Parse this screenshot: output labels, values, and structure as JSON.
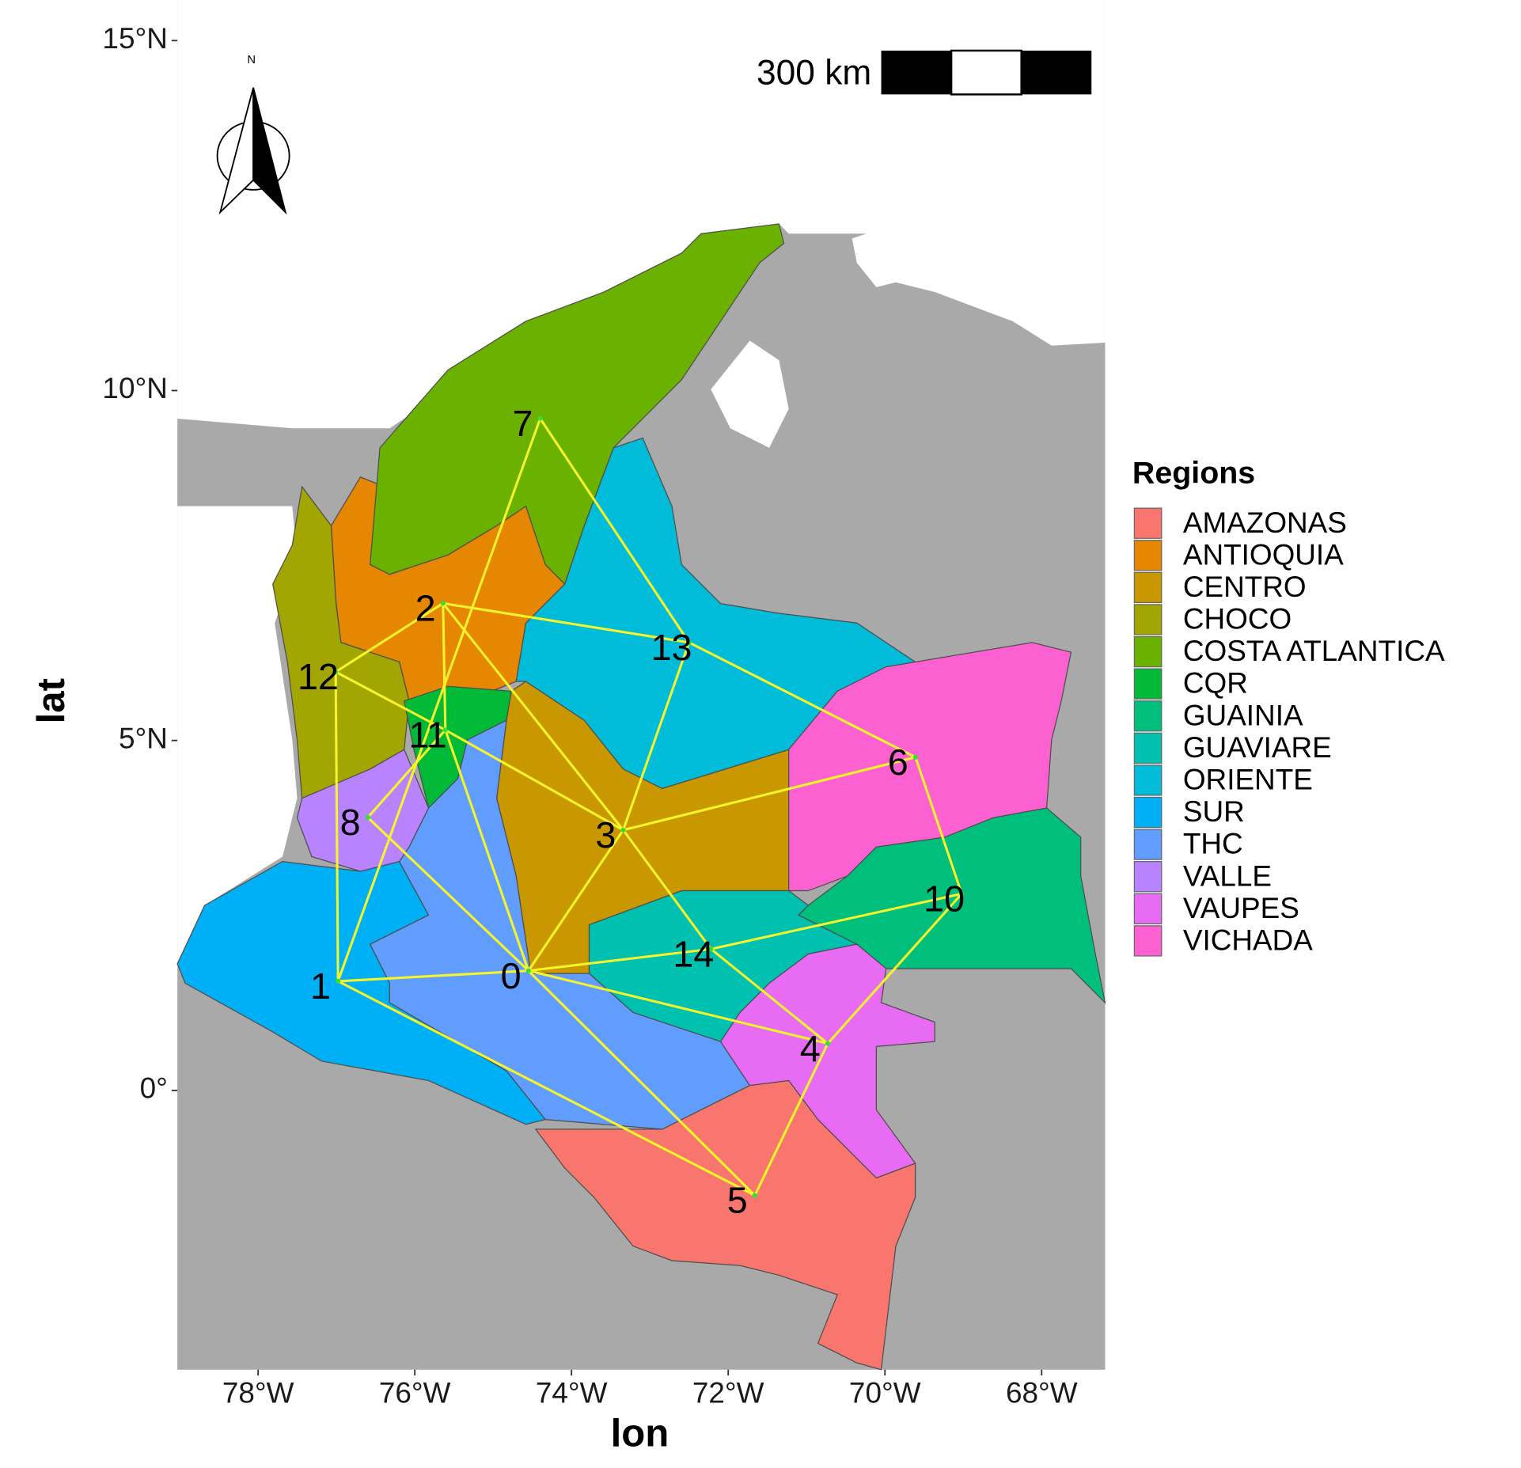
{
  "chart_data": {
    "type": "map",
    "xlabel": "lon",
    "ylabel": "lat",
    "xlim": [
      -79.03,
      -67.19
    ],
    "ylim": [
      -3.99,
      15.58
    ],
    "xticks": [
      {
        "value": -78,
        "label": "78°W"
      },
      {
        "value": -76,
        "label": "76°W"
      },
      {
        "value": -74,
        "label": "74°W"
      },
      {
        "value": -72,
        "label": "72°W"
      },
      {
        "value": -70,
        "label": "70°W"
      },
      {
        "value": -68,
        "label": "68°W"
      }
    ],
    "yticks": [
      {
        "value": 0,
        "label": "0°"
      },
      {
        "value": 5,
        "label": "5°N"
      },
      {
        "value": 10,
        "label": "10°N"
      },
      {
        "value": 15,
        "label": "15°N"
      }
    ],
    "legend": {
      "title": "Regions",
      "entries": [
        {
          "name": "AMAZONAS",
          "color": "#F8766D"
        },
        {
          "name": "ANTIOQUIA",
          "color": "#E58700"
        },
        {
          "name": "CENTRO",
          "color": "#C99800"
        },
        {
          "name": "CHOCO",
          "color": "#A3A500"
        },
        {
          "name": "COSTA ATLANTICA",
          "color": "#6BB100"
        },
        {
          "name": "CQR",
          "color": "#00BA38"
        },
        {
          "name": "GUAINIA",
          "color": "#00BF7D"
        },
        {
          "name": "GUAVIARE",
          "color": "#00C0AF"
        },
        {
          "name": "ORIENTE",
          "color": "#00BCD8"
        },
        {
          "name": "SUR",
          "color": "#00B0F6"
        },
        {
          "name": "THC",
          "color": "#619CFF"
        },
        {
          "name": "VALLE",
          "color": "#B983FF"
        },
        {
          "name": "VAUPES",
          "color": "#E76BF3"
        },
        {
          "name": "VICHADA",
          "color": "#FD61D1"
        }
      ]
    },
    "scale_bar_label": "300 km",
    "north_label": "N",
    "land_color": "#A9A9A9",
    "edge_color": "#F5F52A",
    "node_color": "#33E033",
    "nodes": [
      {
        "label": "0",
        "lon": -74.55,
        "lat": 1.71
      },
      {
        "label": "1",
        "lon": -76.98,
        "lat": 1.56
      },
      {
        "label": "2",
        "lon": -75.64,
        "lat": 6.96
      },
      {
        "label": "3",
        "lon": -73.34,
        "lat": 3.72
      },
      {
        "label": "4",
        "lon": -70.73,
        "lat": 0.67
      },
      {
        "label": "5",
        "lon": -71.66,
        "lat": -1.5
      },
      {
        "label": "6",
        "lon": -69.61,
        "lat": 4.76
      },
      {
        "label": "7",
        "lon": -74.4,
        "lat": 9.6
      },
      {
        "label": "8",
        "lon": -76.6,
        "lat": 3.9
      },
      {
        "label": "10",
        "lon": -69.02,
        "lat": 2.81
      },
      {
        "label": "11",
        "lon": -75.61,
        "lat": 5.15
      },
      {
        "label": "12",
        "lon": -77.01,
        "lat": 5.98
      },
      {
        "label": "13",
        "lon": -72.5,
        "lat": 6.4
      },
      {
        "label": "14",
        "lon": -72.22,
        "lat": 2.02
      }
    ],
    "edges": [
      [
        7,
        1
      ],
      [
        7,
        12
      ],
      [
        2,
        11
      ],
      [
        2,
        10
      ],
      [
        2,
        12
      ],
      [
        2,
        3
      ],
      [
        11,
        10
      ],
      [
        10,
        3
      ],
      [
        11,
        1
      ],
      [
        10,
        8
      ],
      [
        10,
        0
      ],
      [
        8,
        0
      ],
      [
        1,
        0
      ],
      [
        1,
        5
      ],
      [
        0,
        5
      ],
      [
        0,
        13
      ],
      [
        0,
        4
      ],
      [
        0,
        3
      ],
      [
        3,
        12
      ],
      [
        3,
        6
      ],
      [
        3,
        13
      ],
      [
        13,
        9
      ],
      [
        13,
        4
      ],
      [
        12,
        6
      ],
      [
        6,
        9
      ],
      [
        9,
        4
      ],
      [
        4,
        5
      ]
    ]
  }
}
